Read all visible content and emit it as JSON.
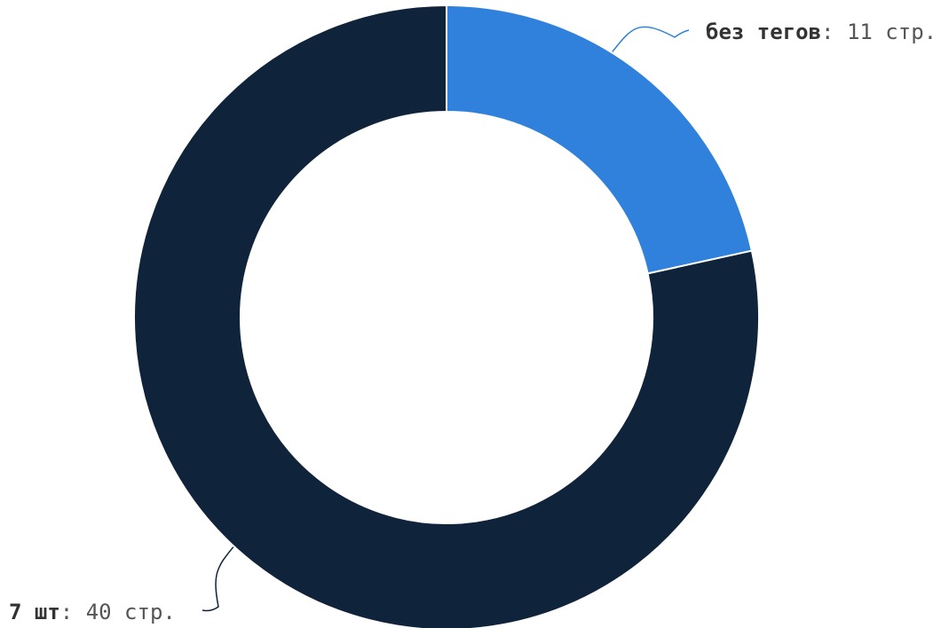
{
  "chart_data": {
    "type": "pie",
    "variant": "donut",
    "title": "",
    "slices": [
      {
        "name": "без тегов",
        "value": 11,
        "value_text": "11 стр.",
        "color": "#3081DC"
      },
      {
        "name": "7 шт",
        "value": 40,
        "value_text": "40 стр.",
        "color": "#0F233A"
      }
    ],
    "separator": ": ",
    "slice_border_color": "#ffffff",
    "connector_color_by_slice": true
  }
}
